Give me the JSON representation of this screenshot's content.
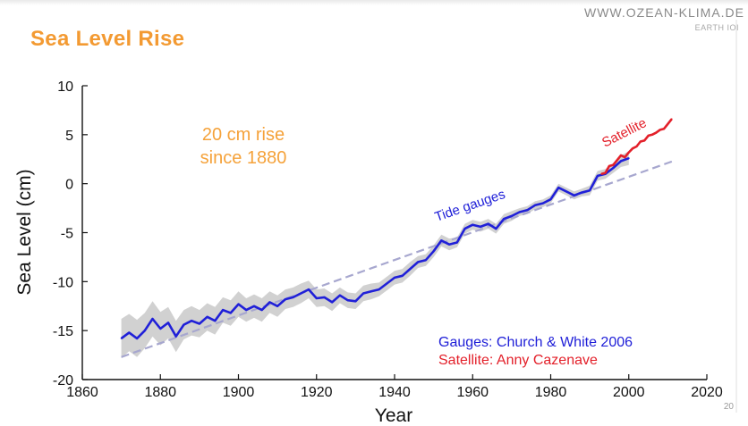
{
  "slide": {
    "title": "Sea Level Rise",
    "site_url": "WWW.OZEAN-KLIMA.DE",
    "site_sub": "EARTH IOI",
    "page_number": "20"
  },
  "colors": {
    "title": "#f39a32",
    "gauges": "#2020d8",
    "satellite": "#e3202a",
    "band": "#c9c9c9",
    "trend": "#a7a7cf",
    "annotation": "#f5a23a"
  },
  "chart_data": {
    "type": "line",
    "title": "",
    "xlabel": "Year",
    "ylabel": "Sea Level (cm)",
    "xlim": [
      1860,
      2020
    ],
    "ylim": [
      -20,
      10
    ],
    "xticks": [
      "1860",
      "1880",
      "1900",
      "1920",
      "1940",
      "1960",
      "1980",
      "2000",
      "2020"
    ],
    "yticks": [
      "10",
      "5",
      "0",
      "-5",
      "-10",
      "-15",
      "-20"
    ],
    "grid": false,
    "legend_position": "bottom-right",
    "annotation_lines": [
      "20 cm rise",
      "since 1880"
    ],
    "legend": [
      {
        "text": "Gauges: Church & White 2006",
        "color": "#2020d8"
      },
      {
        "text": "Satellite: Anny Cazenave",
        "color": "#e3202a"
      }
    ],
    "series": [
      {
        "name": "Tide gauges",
        "color": "#2020d8",
        "x": [
          1870,
          1872,
          1874,
          1876,
          1878,
          1880,
          1882,
          1884,
          1886,
          1888,
          1890,
          1892,
          1894,
          1896,
          1898,
          1900,
          1902,
          1904,
          1906,
          1908,
          1910,
          1912,
          1914,
          1916,
          1918,
          1920,
          1922,
          1924,
          1926,
          1928,
          1930,
          1932,
          1934,
          1936,
          1938,
          1940,
          1942,
          1944,
          1946,
          1948,
          1950,
          1952,
          1954,
          1956,
          1958,
          1960,
          1962,
          1964,
          1966,
          1968,
          1970,
          1972,
          1974,
          1976,
          1978,
          1980,
          1982,
          1984,
          1986,
          1988,
          1990,
          1992,
          1994,
          1996,
          1998,
          2000
        ],
        "y": [
          -15.8,
          -15.2,
          -15.8,
          -15.0,
          -13.8,
          -14.8,
          -14.2,
          -15.6,
          -14.4,
          -14.0,
          -14.3,
          -13.6,
          -14.0,
          -12.9,
          -13.2,
          -12.3,
          -12.9,
          -12.5,
          -12.9,
          -12.1,
          -12.5,
          -11.8,
          -11.6,
          -11.2,
          -10.8,
          -11.7,
          -11.6,
          -12.1,
          -11.4,
          -11.9,
          -12.0,
          -11.2,
          -11.0,
          -10.8,
          -10.2,
          -9.6,
          -9.4,
          -8.7,
          -8.0,
          -7.8,
          -6.9,
          -5.8,
          -6.2,
          -6.0,
          -4.6,
          -4.2,
          -4.4,
          -4.1,
          -4.6,
          -3.6,
          -3.3,
          -2.9,
          -2.7,
          -2.2,
          -2.0,
          -1.6,
          -0.4,
          -0.8,
          -1.2,
          -0.9,
          -0.7,
          0.8,
          1.0,
          1.6,
          2.3,
          2.6
        ],
        "band_halfwidth": [
          2.0,
          1.9,
          1.9,
          1.8,
          1.8,
          1.7,
          1.6,
          1.6,
          1.5,
          1.5,
          1.4,
          1.4,
          1.4,
          1.3,
          1.3,
          1.3,
          1.2,
          1.2,
          1.2,
          1.1,
          1.1,
          1.0,
          1.0,
          1.0,
          0.9,
          0.9,
          0.9,
          0.9,
          0.8,
          0.8,
          0.8,
          0.8,
          0.8,
          0.7,
          0.7,
          0.7,
          0.7,
          0.7,
          0.6,
          0.6,
          0.6,
          0.6,
          0.6,
          0.5,
          0.5,
          0.5,
          0.5,
          0.5,
          0.5,
          0.5,
          0.5,
          0.4,
          0.4,
          0.4,
          0.4,
          0.4,
          0.4,
          0.4,
          0.4,
          0.4,
          0.5,
          0.5,
          0.5,
          0.5,
          0.6,
          0.7
        ]
      },
      {
        "name": "Satellite",
        "color": "#e3202a",
        "x": [
          1993,
          1994,
          1995,
          1996,
          1997,
          1998,
          1999,
          2000,
          2001,
          2002,
          2003,
          2004,
          2005,
          2006,
          2007,
          2008,
          2009,
          2010,
          2011
        ],
        "y": [
          1.0,
          1.1,
          1.8,
          1.9,
          2.4,
          2.9,
          2.7,
          3.2,
          3.6,
          3.8,
          4.3,
          4.4,
          4.9,
          5.0,
          5.2,
          5.5,
          5.6,
          6.1,
          6.6
        ]
      },
      {
        "name": "Trend",
        "color": "#a7a7cf",
        "x": [
          1870,
          2012
        ],
        "y": [
          -17.7,
          2.4
        ]
      }
    ]
  }
}
